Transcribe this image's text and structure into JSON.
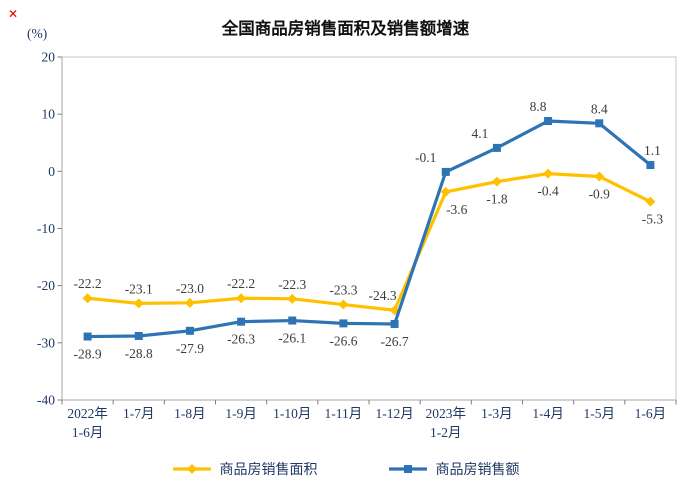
{
  "page": {
    "background": "#ffffff"
  },
  "artifact": {
    "broken_mark": "✕"
  },
  "chart_data": {
    "type": "line",
    "title": "全国商品房销售面积及销售额增速",
    "unit_label": "(%)",
    "ylim": [
      -40,
      20
    ],
    "yticks": [
      20,
      10,
      0,
      -10,
      -20,
      -30,
      -40
    ],
    "grid": false,
    "legend_position": "bottom",
    "categories": [
      "2022年\n1-6月",
      "1-7月",
      "1-8月",
      "1-9月",
      "1-10月",
      "1-11月",
      "1-12月",
      "2023年\n1-2月",
      "1-3月",
      "1-4月",
      "1-5月",
      "1-6月"
    ],
    "series": [
      {
        "name": "商品房销售面积",
        "color": "#FFC000",
        "marker": "diamond",
        "values": [
          -22.2,
          -23.1,
          -23.0,
          -22.2,
          -22.3,
          -23.3,
          -24.3,
          -3.6,
          -1.8,
          -0.4,
          -0.9,
          -5.3
        ],
        "label_side": [
          "above",
          "above",
          "above",
          "above",
          "above",
          "above",
          "above",
          "below",
          "below",
          "below",
          "below",
          "below"
        ],
        "label_dx": [
          0,
          0,
          0,
          0,
          0,
          0,
          -12,
          11,
          0,
          0,
          0,
          2
        ]
      },
      {
        "name": "商品房销售额",
        "color": "#2E74B5",
        "marker": "square",
        "values": [
          -28.9,
          -28.8,
          -27.9,
          -26.3,
          -26.1,
          -26.6,
          -26.7,
          -0.1,
          4.1,
          8.8,
          8.4,
          1.1
        ],
        "label_side": [
          "below",
          "below",
          "below",
          "below",
          "below",
          "below",
          "below",
          "above",
          "above",
          "above",
          "above",
          "above"
        ],
        "label_dx": [
          0,
          0,
          0,
          0,
          0,
          0,
          0,
          -20,
          -17,
          -10,
          0,
          2
        ]
      }
    ],
    "axis_text_color": "#1F3864",
    "label_text_color": "#3d3d3d",
    "frame_color": "#C9C9C9",
    "axis_line_color": "#A6A6A6",
    "tick_color": "#808080"
  }
}
